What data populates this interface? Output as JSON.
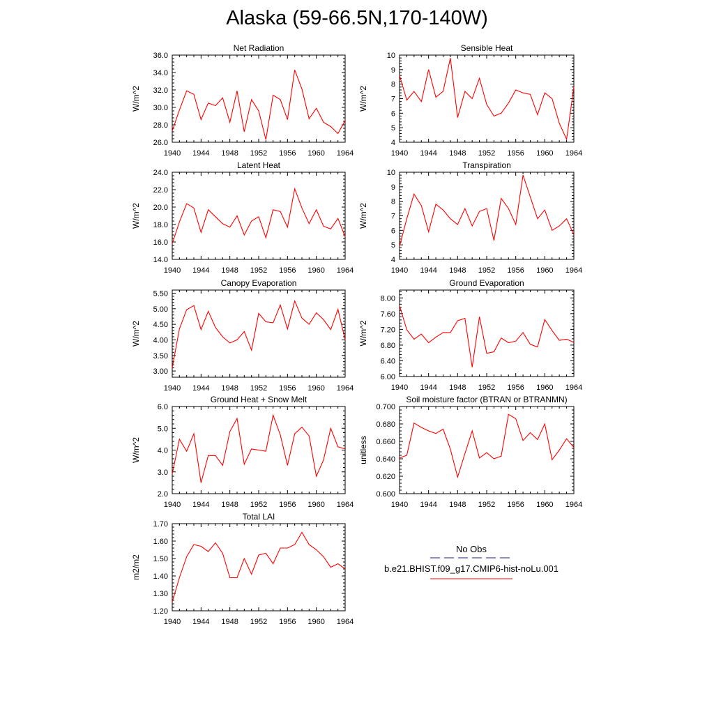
{
  "page": {
    "title": "Alaska (59-66.5N,170-140W)"
  },
  "chart_data": [
    {
      "type": "line",
      "title": "Net Radiation",
      "ylabel": "W/m^2",
      "x": [
        1940,
        1941,
        1942,
        1943,
        1944,
        1945,
        1946,
        1947,
        1948,
        1949,
        1950,
        1951,
        1952,
        1953,
        1954,
        1955,
        1956,
        1957,
        1958,
        1959,
        1960,
        1961,
        1962,
        1963,
        1964
      ],
      "xlim": [
        1940,
        1964
      ],
      "xticks": [
        "1940",
        "1944",
        "1948",
        "1952",
        "1956",
        "1960",
        "1964"
      ],
      "ylim": [
        26,
        36
      ],
      "yticks": [
        "26.0",
        "28.0",
        "30.0",
        "32.0",
        "34.0",
        "36.0"
      ],
      "series": [
        {
          "values": [
            27.3,
            29.7,
            31.9,
            31.5,
            28.6,
            30.5,
            30.2,
            31.1,
            28.3,
            31.9,
            27.2,
            30.9,
            29.6,
            26.3,
            31.4,
            30.9,
            28.6,
            34.3,
            32.1,
            28.7,
            29.9,
            28.3,
            27.8,
            27.0,
            28.5
          ]
        }
      ]
    },
    {
      "type": "line",
      "title": "Sensible Heat",
      "ylabel": "W/m^2",
      "x": [
        1940,
        1941,
        1942,
        1943,
        1944,
        1945,
        1946,
        1947,
        1948,
        1949,
        1950,
        1951,
        1952,
        1953,
        1954,
        1955,
        1956,
        1957,
        1958,
        1959,
        1960,
        1961,
        1962,
        1963,
        1964
      ],
      "xlim": [
        1940,
        1964
      ],
      "xticks": [
        "1940",
        "1944",
        "1948",
        "1952",
        "1956",
        "1960",
        "1964"
      ],
      "ylim": [
        4,
        10
      ],
      "yticks": [
        "4",
        "5",
        "6",
        "7",
        "8",
        "9",
        "10"
      ],
      "series": [
        {
          "values": [
            8.6,
            6.9,
            7.5,
            6.8,
            9.0,
            7.1,
            7.5,
            9.8,
            5.7,
            7.5,
            7.0,
            8.4,
            6.6,
            5.8,
            6.0,
            6.7,
            7.6,
            7.4,
            7.3,
            5.9,
            7.4,
            7.0,
            5.3,
            4.2,
            7.8
          ]
        }
      ]
    },
    {
      "type": "line",
      "title": "Latent Heat",
      "ylabel": "W/m^2",
      "x": [
        1940,
        1941,
        1942,
        1943,
        1944,
        1945,
        1946,
        1947,
        1948,
        1949,
        1950,
        1951,
        1952,
        1953,
        1954,
        1955,
        1956,
        1957,
        1958,
        1959,
        1960,
        1961,
        1962,
        1963,
        1964
      ],
      "xlim": [
        1940,
        1964
      ],
      "xticks": [
        "1940",
        "1944",
        "1948",
        "1952",
        "1956",
        "1960",
        "1964"
      ],
      "ylim": [
        14,
        24
      ],
      "yticks": [
        "14.0",
        "16.0",
        "18.0",
        "20.0",
        "22.0",
        "24.0"
      ],
      "series": [
        {
          "values": [
            15.8,
            18.3,
            20.4,
            19.9,
            17.1,
            19.7,
            18.9,
            18.1,
            17.7,
            19.0,
            16.8,
            18.4,
            18.9,
            16.5,
            19.7,
            19.5,
            17.7,
            22.1,
            19.9,
            18.1,
            19.7,
            17.8,
            17.5,
            18.7,
            16.6
          ]
        }
      ]
    },
    {
      "type": "line",
      "title": "Transpiration",
      "ylabel": "W/m^2",
      "x": [
        1940,
        1941,
        1942,
        1943,
        1944,
        1945,
        1946,
        1947,
        1948,
        1949,
        1950,
        1951,
        1952,
        1953,
        1954,
        1955,
        1956,
        1957,
        1958,
        1959,
        1960,
        1961,
        1962,
        1963,
        1964
      ],
      "xlim": [
        1940,
        1964
      ],
      "xticks": [
        "1940",
        "1944",
        "1948",
        "1952",
        "1956",
        "1960",
        "1964"
      ],
      "ylim": [
        4,
        10
      ],
      "yticks": [
        "4",
        "5",
        "6",
        "7",
        "8",
        "9",
        "10"
      ],
      "series": [
        {
          "values": [
            4.9,
            6.8,
            8.5,
            7.7,
            5.9,
            7.8,
            7.4,
            6.8,
            6.4,
            7.5,
            6.3,
            7.3,
            7.5,
            5.3,
            8.2,
            7.5,
            6.4,
            9.8,
            8.3,
            6.8,
            7.4,
            6.0,
            6.3,
            6.8,
            5.7
          ]
        }
      ]
    },
    {
      "type": "line",
      "title": "Canopy Evaporation",
      "ylabel": "W/m^2",
      "x": [
        1940,
        1941,
        1942,
        1943,
        1944,
        1945,
        1946,
        1947,
        1948,
        1949,
        1950,
        1951,
        1952,
        1953,
        1954,
        1955,
        1956,
        1957,
        1958,
        1959,
        1960,
        1961,
        1962,
        1963,
        1964
      ],
      "xlim": [
        1940,
        1964
      ],
      "xticks": [
        "1940",
        "1944",
        "1948",
        "1952",
        "1956",
        "1960",
        "1964"
      ],
      "ylim": [
        2.8,
        5.6
      ],
      "yticks": [
        "3.00",
        "3.50",
        "4.00",
        "4.50",
        "5.00",
        "5.50"
      ],
      "series": [
        {
          "values": [
            3.1,
            4.35,
            4.97,
            5.1,
            4.33,
            4.92,
            4.4,
            4.1,
            3.9,
            4.0,
            4.27,
            3.67,
            4.85,
            4.58,
            4.55,
            5.12,
            4.35,
            5.25,
            4.7,
            4.5,
            4.87,
            4.65,
            4.33,
            4.98,
            4.0
          ]
        }
      ]
    },
    {
      "type": "line",
      "title": "Ground Evaporation",
      "ylabel": "W/m^2",
      "x": [
        1940,
        1941,
        1942,
        1943,
        1944,
        1945,
        1946,
        1947,
        1948,
        1949,
        1950,
        1951,
        1952,
        1953,
        1954,
        1955,
        1956,
        1957,
        1958,
        1959,
        1960,
        1961,
        1962,
        1963,
        1964
      ],
      "xlim": [
        1940,
        1964
      ],
      "xticks": [
        "1940",
        "1944",
        "1948",
        "1952",
        "1956",
        "1960",
        "1964"
      ],
      "ylim": [
        6.0,
        8.2
      ],
      "yticks": [
        "6.00",
        "6.40",
        "6.80",
        "7.20",
        "7.60",
        "8.00"
      ],
      "series": [
        {
          "values": [
            7.8,
            7.19,
            6.95,
            7.08,
            6.86,
            7.0,
            7.12,
            7.12,
            7.42,
            7.48,
            6.24,
            7.52,
            6.59,
            6.63,
            6.98,
            6.86,
            6.9,
            7.12,
            6.82,
            6.75,
            7.45,
            7.17,
            6.92,
            6.95,
            6.87
          ]
        }
      ]
    },
    {
      "type": "line",
      "title": "Ground Heat + Snow Melt",
      "ylabel": "W/m^2",
      "x": [
        1940,
        1941,
        1942,
        1943,
        1944,
        1945,
        1946,
        1947,
        1948,
        1949,
        1950,
        1951,
        1952,
        1953,
        1954,
        1955,
        1956,
        1957,
        1958,
        1959,
        1960,
        1961,
        1962,
        1963,
        1964
      ],
      "xlim": [
        1940,
        1964
      ],
      "xticks": [
        "1940",
        "1944",
        "1948",
        "1952",
        "1956",
        "1960",
        "1964"
      ],
      "ylim": [
        2,
        6
      ],
      "yticks": [
        "2.0",
        "3.0",
        "4.0",
        "5.0",
        "6.0"
      ],
      "series": [
        {
          "values": [
            2.9,
            4.5,
            3.95,
            4.75,
            2.5,
            3.75,
            3.75,
            3.3,
            4.85,
            5.45,
            3.35,
            4.05,
            4.0,
            3.95,
            5.6,
            4.7,
            3.3,
            4.75,
            5.05,
            4.65,
            2.8,
            3.55,
            5.0,
            4.15,
            4.05
          ]
        }
      ]
    },
    {
      "type": "line",
      "title": "Soil moisture factor (BTRAN or BTRANMN)",
      "ylabel": "unitless",
      "x": [
        1940,
        1941,
        1942,
        1943,
        1944,
        1945,
        1946,
        1947,
        1948,
        1949,
        1950,
        1951,
        1952,
        1953,
        1954,
        1955,
        1956,
        1957,
        1958,
        1959,
        1960,
        1961,
        1962,
        1963,
        1964
      ],
      "xlim": [
        1940,
        1964
      ],
      "xticks": [
        "1940",
        "1944",
        "1948",
        "1952",
        "1956",
        "1960",
        "1964"
      ],
      "ylim": [
        0.6,
        0.7
      ],
      "yticks": [
        "0.600",
        "0.620",
        "0.640",
        "0.660",
        "0.680",
        "0.700"
      ],
      "series": [
        {
          "values": [
            0.641,
            0.644,
            0.681,
            0.676,
            0.672,
            0.669,
            0.674,
            0.651,
            0.619,
            0.646,
            0.672,
            0.641,
            0.647,
            0.64,
            0.643,
            0.691,
            0.686,
            0.661,
            0.67,
            0.662,
            0.68,
            0.639,
            0.65,
            0.663,
            0.653
          ]
        }
      ]
    },
    {
      "type": "line",
      "title": "Total LAI",
      "ylabel": "m2/m2",
      "x": [
        1940,
        1941,
        1942,
        1943,
        1944,
        1945,
        1946,
        1947,
        1948,
        1949,
        1950,
        1951,
        1952,
        1953,
        1954,
        1955,
        1956,
        1957,
        1958,
        1959,
        1960,
        1961,
        1962,
        1963,
        1964
      ],
      "xlim": [
        1940,
        1964
      ],
      "xticks": [
        "1940",
        "1944",
        "1948",
        "1952",
        "1956",
        "1960",
        "1964"
      ],
      "ylim": [
        1.2,
        1.7
      ],
      "yticks": [
        "1.20",
        "1.30",
        "1.40",
        "1.50",
        "1.60",
        "1.70"
      ],
      "series": [
        {
          "values": [
            1.25,
            1.39,
            1.51,
            1.58,
            1.57,
            1.54,
            1.59,
            1.53,
            1.39,
            1.39,
            1.5,
            1.41,
            1.52,
            1.53,
            1.47,
            1.56,
            1.56,
            1.58,
            1.65,
            1.58,
            1.55,
            1.51,
            1.45,
            1.47,
            1.44
          ]
        }
      ]
    }
  ],
  "legend": {
    "entries": [
      {
        "label": "No Obs",
        "color": "#1a1a8c",
        "dash": "dashed"
      },
      {
        "label": "b.e21.BHIST.f09_g17.CMIP6-hist-noLu.001",
        "color": "#ff0000",
        "dash": "solid"
      }
    ]
  },
  "colors": {
    "series": "#ff0000",
    "axis": "#000000"
  }
}
